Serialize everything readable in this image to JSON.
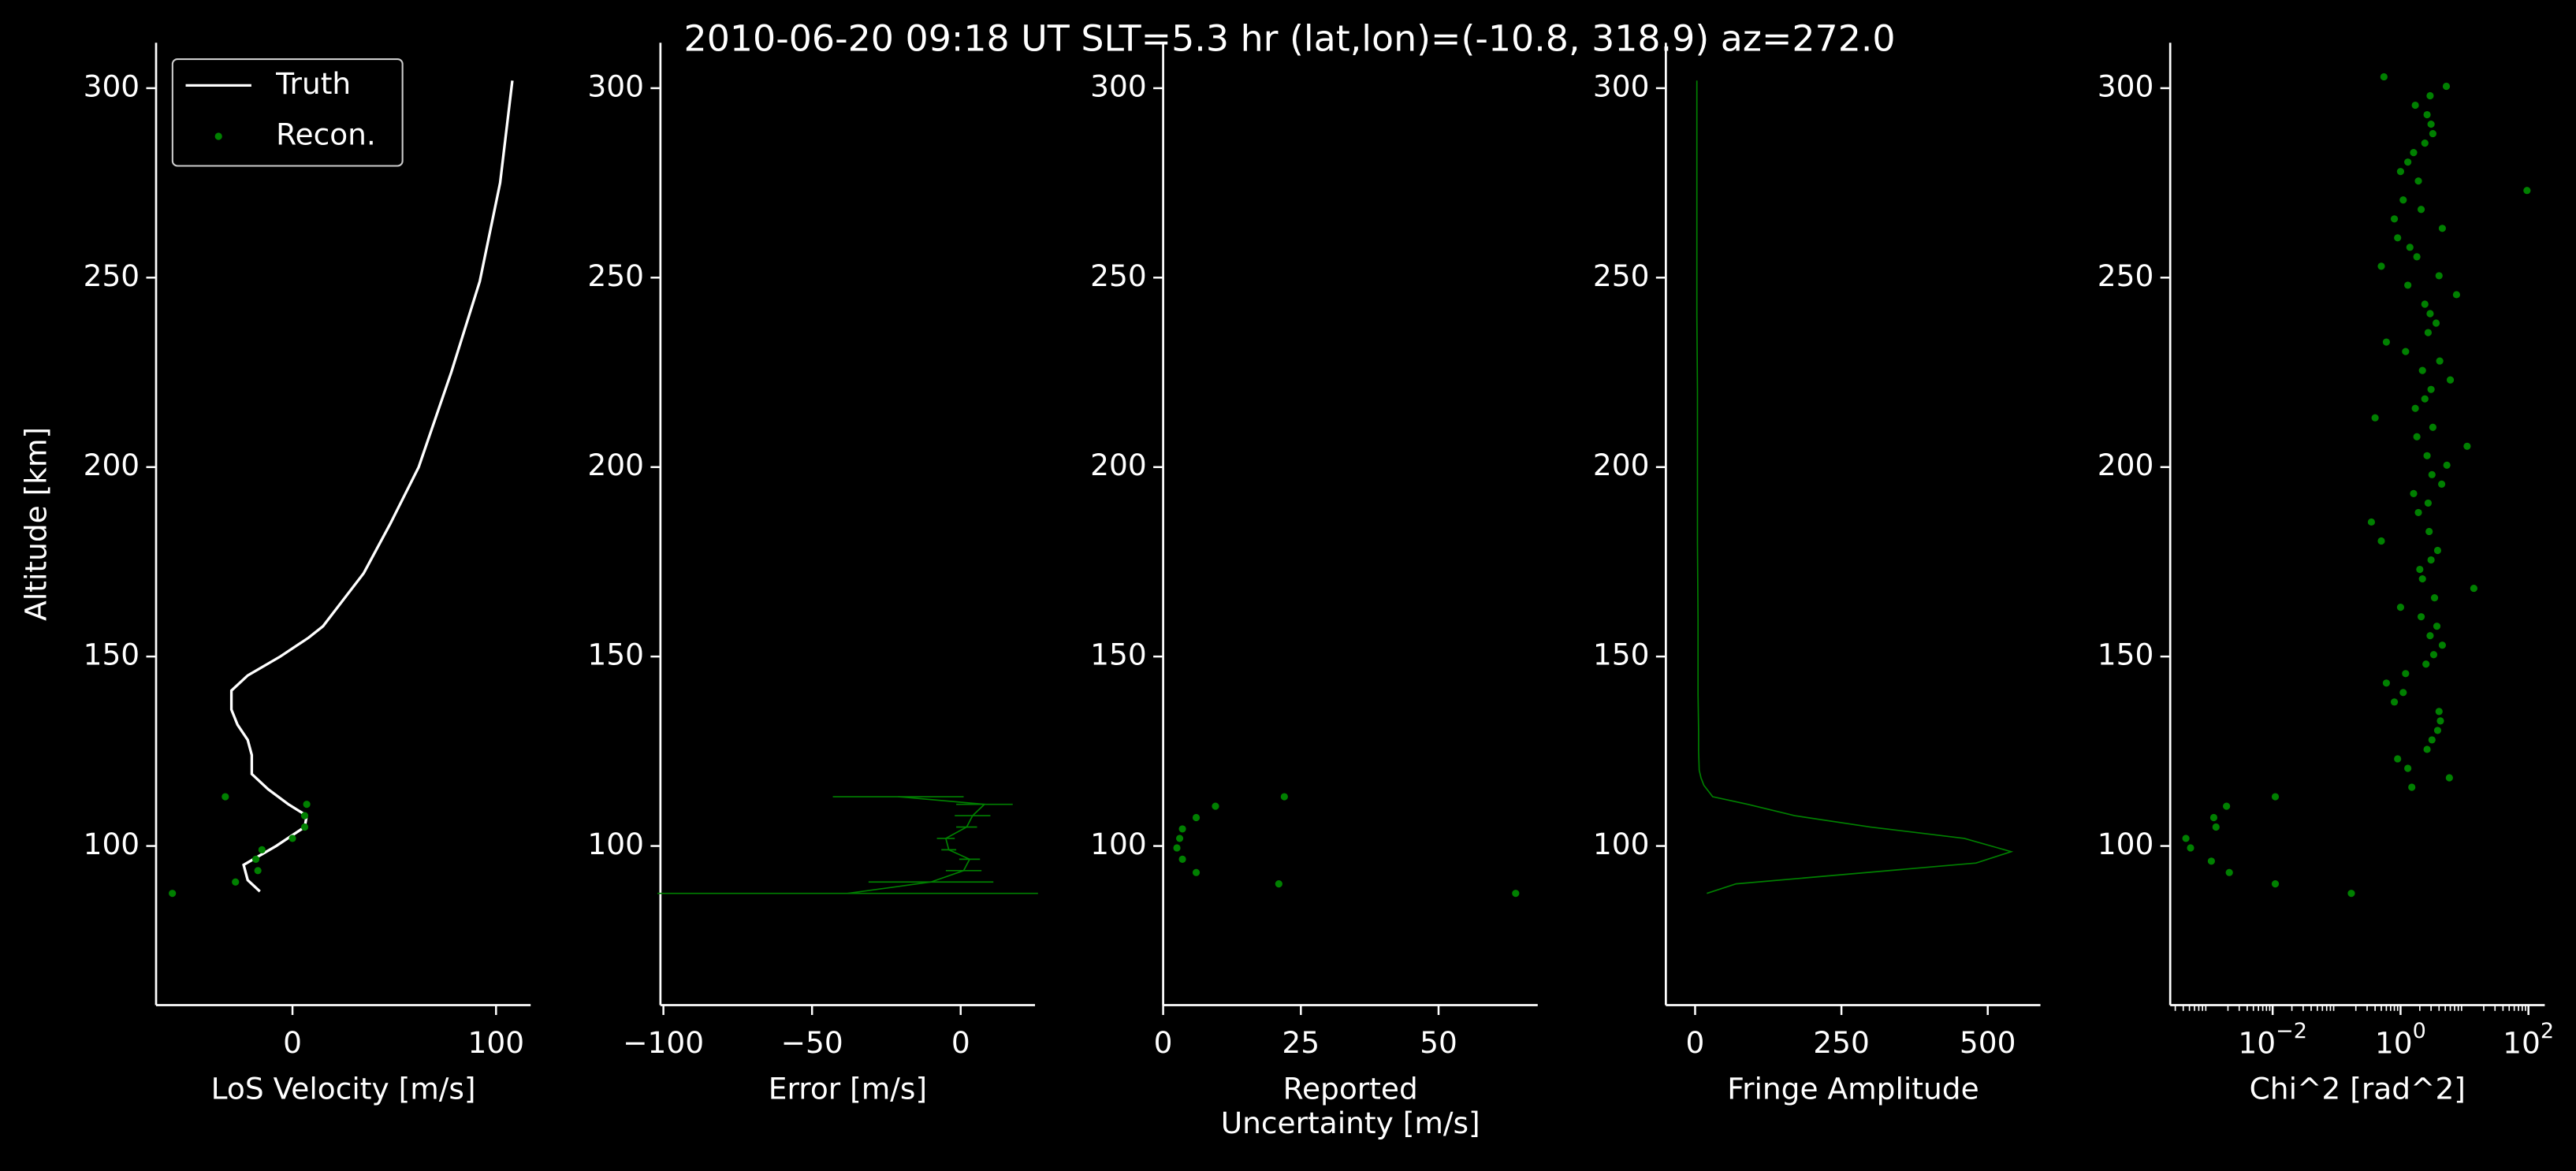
{
  "title": "2010-06-20 09:18 UT     SLT=5.3 hr      (lat,lon)=(-10.8, 318.9)       az=272.0",
  "chart_data": [
    {
      "type": "line",
      "xlabel": [
        "LoS Velocity [m/s]"
      ],
      "ylabel": "Altitude [km]",
      "xlim": [
        -67,
        117
      ],
      "xticks": [
        0,
        100
      ],
      "ylim": [
        58,
        312
      ],
      "yticks": [
        100,
        150,
        200,
        250,
        300
      ],
      "legend": "upper left",
      "series": [
        {
          "name": "Truth",
          "color": "#ffffff",
          "style": "line",
          "y": [
            88,
            91,
            95,
            100,
            105,
            108,
            111,
            115,
            119,
            124,
            128,
            132,
            136,
            141,
            145,
            150,
            155,
            158,
            165,
            172,
            185,
            200,
            225,
            249,
            275,
            302
          ],
          "x": [
            -16,
            -22,
            -24,
            -8,
            6,
            7,
            -2,
            -12,
            -20,
            -20,
            -22,
            -27,
            -30,
            -30,
            -22,
            -6,
            8,
            15,
            25,
            35,
            48,
            62,
            78,
            92,
            102,
            108
          ]
        },
        {
          "name": "Recon.",
          "color": "#008000",
          "style": "points",
          "y": [
            113,
            111,
            108,
            105,
            102,
            99,
            96.5,
            93.5,
            90.5,
            87.5
          ],
          "x": [
            -33,
            7,
            6,
            6,
            0,
            -15,
            -18,
            -17,
            -28,
            -59
          ]
        }
      ]
    },
    {
      "type": "line",
      "xlabel": [
        "Error [m/s]"
      ],
      "xlim": [
        -101,
        25
      ],
      "xticks": [
        {
          "value": -100,
          "label": "−100"
        },
        {
          "value": -50,
          "label": "−50"
        },
        0
      ],
      "ylim": [
        58,
        312
      ],
      "yticks": [
        100,
        150,
        200,
        250,
        300
      ],
      "series": [
        {
          "color": "#008000",
          "style": "errorbar",
          "y": [
            113,
            111,
            108,
            105,
            102,
            99,
            96.5,
            93.5,
            90.5,
            87.5
          ],
          "x": [
            -21,
            8,
            4,
            2,
            -5,
            -4,
            3,
            1,
            -10,
            -38
          ],
          "errors": [
            22,
            9.5,
            6,
            3.5,
            3,
            2.5,
            3.5,
            6,
            21,
            64
          ]
        }
      ]
    },
    {
      "type": "scatter",
      "xlabel": [
        "Reported",
        "Uncertainty [m/s]"
      ],
      "xlim": [
        0,
        68
      ],
      "xticks": [
        0,
        25,
        50
      ],
      "ylim": [
        58,
        312
      ],
      "yticks": [
        100,
        150,
        200,
        250,
        300
      ],
      "series": [
        {
          "color": "#008000",
          "style": "points",
          "y": [
            113,
            110.5,
            107.5,
            104.5,
            102,
            99.5,
            96.5,
            93,
            90,
            87.5
          ],
          "x": [
            22,
            9.5,
            6,
            3.5,
            3,
            2.5,
            3.5,
            6,
            21,
            64
          ]
        }
      ]
    },
    {
      "type": "line",
      "xlabel": [
        "Fringe Amplitude"
      ],
      "xlim": [
        -50,
        590
      ],
      "xticks": [
        0,
        250,
        500
      ],
      "ylim": [
        58,
        312
      ],
      "yticks": [
        100,
        150,
        200,
        250,
        300
      ],
      "series": [
        {
          "color": "#008000",
          "style": "line",
          "y": [
            87.5,
            90,
            95.5,
            98.5,
            102,
            105,
            108,
            111,
            113,
            116,
            118,
            120,
            125,
            130,
            140,
            150,
            160,
            180,
            200,
            220,
            240,
            260,
            280,
            302
          ],
          "x": [
            20,
            70,
            480,
            540,
            460,
            300,
            170,
            90,
            30,
            15,
            10,
            7,
            6,
            6,
            5,
            5,
            5,
            4,
            4,
            4,
            3,
            3,
            3,
            3
          ]
        }
      ]
    },
    {
      "type": "scatter",
      "xlabel": [
        "Chi^2 [rad^2]"
      ],
      "xscale": "log",
      "xlim": [
        0.00025,
        180
      ],
      "xticks": [
        {
          "value": 0.01,
          "label": "10",
          "exponent": "−2"
        },
        {
          "value": 1,
          "label": "10",
          "exponent": "0"
        },
        {
          "value": 100,
          "label": "10",
          "exponent": "2"
        }
      ],
      "ylim": [
        58,
        312
      ],
      "yticks": [
        100,
        150,
        200,
        250,
        300
      ],
      "series": [
        {
          "color": "#008000",
          "style": "points",
          "y": [
            113,
            110.5,
            107.5,
            105,
            102,
            99.5,
            96,
            93,
            90,
            87.5,
            115.5,
            118,
            120.5,
            123,
            125.5,
            128,
            130.5,
            133,
            135.5,
            138,
            140.5,
            143,
            145.5,
            148,
            150.5,
            153,
            155.5,
            158,
            160.5,
            163,
            165.5,
            168,
            170.5,
            173,
            175.5,
            178,
            180.5,
            183,
            185.5,
            188,
            190.5,
            193,
            195.5,
            198,
            200.5,
            203,
            205.5,
            208,
            210.5,
            213,
            215.5,
            218,
            220.5,
            223,
            225.5,
            228,
            230.5,
            233,
            235.5,
            238,
            240.5,
            243,
            245.5,
            248,
            250.5,
            253,
            255.5,
            258,
            260.5,
            263,
            265.5,
            268,
            270.5,
            273,
            275.5,
            278,
            280.5,
            283,
            285.5,
            288,
            290.5,
            293,
            295.5,
            298,
            300.5,
            303
          ],
          "x": [
            0.011,
            0.0019,
            0.0012,
            0.0013,
            0.00044,
            0.00052,
            0.0011,
            0.0021,
            0.011,
            0.17,
            1.5,
            5.8,
            1.3,
            0.9,
            2.6,
            3.1,
            3.8,
            4.2,
            4.0,
            0.8,
            1.1,
            0.6,
            1.2,
            2.5,
            3.3,
            4.5,
            2.9,
            3.7,
            2.1,
            1.0,
            3.4,
            14,
            2.2,
            2.0,
            3.0,
            3.8,
            0.5,
            2.8,
            0.35,
            1.9,
            2.7,
            1.6,
            4.4,
            3.1,
            5.3,
            2.6,
            11,
            1.8,
            3.2,
            0.4,
            1.7,
            2.4,
            3.0,
            6.0,
            2.2,
            4.1,
            1.2,
            0.6,
            2.7,
            3.6,
            2.9,
            2.4,
            7.5,
            1.3,
            4.0,
            0.5,
            1.8,
            1.4,
            0.9,
            4.5,
            0.8,
            2.1,
            1.1,
            95,
            1.9,
            1.0,
            1.3,
            1.6,
            2.4,
            3.2,
            3.0,
            2.6,
            1.7,
            2.9,
            5.2,
            0.55
          ]
        }
      ]
    }
  ]
}
